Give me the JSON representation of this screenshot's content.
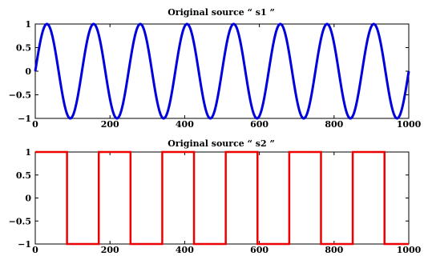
{
  "chart_data": [
    {
      "type": "line",
      "title": "Original source “ s1 ”",
      "xlabel": "",
      "ylabel": "",
      "xlim": [
        0,
        1000
      ],
      "ylim": [
        -1,
        1
      ],
      "xticks": [
        "0",
        "200",
        "400",
        "600",
        "800",
        "1000"
      ],
      "yticks": [
        "1",
        "0.5",
        "0",
        "−0.5",
        "−1"
      ],
      "grid": false,
      "color": "#0000dd",
      "series": [
        {
          "function": "sine",
          "amplitude": 1,
          "period": 125,
          "x_start": 0,
          "x_end": 1000,
          "samples": 1000
        }
      ]
    },
    {
      "type": "line",
      "title": "Original source “ s2 ”",
      "xlabel": "",
      "ylabel": "",
      "xlim": [
        0,
        1000
      ],
      "ylim": [
        -1,
        1
      ],
      "xticks": [
        "0",
        "200",
        "400",
        "600",
        "800",
        "1000"
      ],
      "yticks": [
        "1",
        "0.5",
        "0",
        "−0.5",
        "−1"
      ],
      "grid": false,
      "color": "#ee0000",
      "series": [
        {
          "function": "square",
          "x_transitions": [
            0,
            85,
            170,
            255,
            340,
            425,
            510,
            595,
            680,
            765,
            850,
            935,
            1000
          ],
          "first_level": 1,
          "samples": 1000
        }
      ]
    }
  ]
}
